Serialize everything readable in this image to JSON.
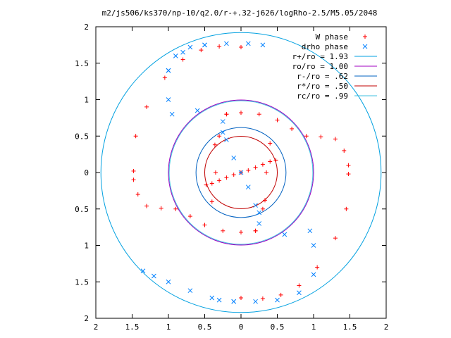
{
  "chart_data": {
    "type": "scatter",
    "title": "m2/js506/ks370/np-10/q2.0/r-+.32-j626/logRho-2.5/M5.05/2048",
    "xlabel": "",
    "ylabel": "",
    "xlim": [
      -2,
      2
    ],
    "ylim": [
      -2,
      2
    ],
    "x_tick_values": [
      -2,
      -1.5,
      -1,
      -0.5,
      0,
      0.5,
      1,
      1.5,
      2
    ],
    "x_tick_labels": [
      "2",
      "1.5",
      "1",
      "0.5",
      "0",
      "0.5",
      "1",
      "1.5",
      "2"
    ],
    "y_tick_values": [
      -2,
      -1.5,
      -1,
      -0.5,
      0,
      0.5,
      1,
      1.5,
      2
    ],
    "y_tick_labels": [
      "2",
      "1.5",
      "1",
      "0.5",
      "0",
      "0.5",
      "1",
      "1.5",
      "2"
    ],
    "grid": false,
    "legend_position": "top-right",
    "series": [
      {
        "name": "W phase",
        "marker": "plus",
        "color": "#ff0000",
        "points": [
          [
            0,
            0
          ],
          [
            -0.1,
            -0.03
          ],
          [
            -0.2,
            -0.07
          ],
          [
            -0.3,
            -0.11
          ],
          [
            -0.4,
            -0.15
          ],
          [
            -0.48,
            -0.17
          ],
          [
            0.1,
            0.03
          ],
          [
            0.2,
            0.07
          ],
          [
            0.3,
            0.11
          ],
          [
            0.4,
            0.15
          ],
          [
            0.48,
            0.17
          ],
          [
            -0.36,
            0.38
          ],
          [
            0.33,
            -0.38
          ],
          [
            -1.48,
            0.02
          ],
          [
            -1.45,
            0.5
          ],
          [
            -1.3,
            0.9
          ],
          [
            -1.05,
            1.3
          ],
          [
            -0.8,
            1.55
          ],
          [
            -0.55,
            1.68
          ],
          [
            -0.3,
            1.73
          ],
          [
            0,
            1.72
          ],
          [
            1.48,
            -0.02
          ],
          [
            1.45,
            -0.5
          ],
          [
            1.3,
            -0.9
          ],
          [
            1.05,
            -1.3
          ],
          [
            0.8,
            -1.55
          ],
          [
            0.55,
            -1.68
          ],
          [
            0.3,
            -1.73
          ],
          [
            0,
            -1.72
          ],
          [
            -0.2,
            0.8
          ],
          [
            0.0,
            0.82
          ],
          [
            0.25,
            0.8
          ],
          [
            0.5,
            0.72
          ],
          [
            0.7,
            0.6
          ],
          [
            0.9,
            0.5
          ],
          [
            1.1,
            0.49
          ],
          [
            1.3,
            0.46
          ],
          [
            1.42,
            0.3
          ],
          [
            1.48,
            0.1
          ],
          [
            0.2,
            -0.8
          ],
          [
            0.0,
            -0.82
          ],
          [
            -0.25,
            -0.8
          ],
          [
            -0.5,
            -0.72
          ],
          [
            -0.7,
            -0.6
          ],
          [
            -0.9,
            -0.5
          ],
          [
            -1.1,
            -0.49
          ],
          [
            -1.3,
            -0.46
          ],
          [
            -1.42,
            -0.3
          ],
          [
            -1.48,
            -0.1
          ],
          [
            -0.2,
            0.8
          ],
          [
            -0.3,
            0.5
          ],
          [
            -0.35,
            0.0
          ],
          [
            -0.4,
            -0.4
          ],
          [
            -0.5,
            -0.72
          ],
          [
            0.2,
            -0.8
          ],
          [
            0.3,
            -0.5
          ],
          [
            0.35,
            0.0
          ],
          [
            0.4,
            0.4
          ],
          [
            0.5,
            0.72
          ]
        ]
      },
      {
        "name": "drho phase",
        "marker": "cross",
        "color": "#0080ff",
        "points": [
          [
            0,
            0
          ],
          [
            -0.1,
            0.2
          ],
          [
            -0.2,
            0.45
          ],
          [
            0.1,
            -0.2
          ],
          [
            0.2,
            -0.45
          ],
          [
            -0.25,
            0.55
          ],
          [
            -0.25,
            0.7
          ],
          [
            -0.6,
            0.85
          ],
          [
            -0.95,
            0.8
          ],
          [
            -1.0,
            1.0
          ],
          [
            -1.0,
            1.4
          ],
          [
            -0.8,
            1.65
          ],
          [
            -0.5,
            1.75
          ],
          [
            -0.2,
            1.77
          ],
          [
            0.1,
            1.77
          ],
          [
            0.3,
            1.75
          ],
          [
            0.25,
            -0.55
          ],
          [
            0.25,
            -0.7
          ],
          [
            0.6,
            -0.85
          ],
          [
            0.95,
            -0.8
          ],
          [
            1.0,
            -1.0
          ],
          [
            1.0,
            -1.4
          ],
          [
            0.8,
            -1.65
          ],
          [
            0.5,
            -1.75
          ],
          [
            0.2,
            -1.77
          ],
          [
            -0.1,
            -1.77
          ],
          [
            -0.3,
            -1.75
          ],
          [
            -0.5,
            1.75
          ],
          [
            -0.7,
            1.72
          ],
          [
            -0.9,
            1.6
          ],
          [
            -1.0,
            1.4
          ],
          [
            -1.35,
            -1.35
          ],
          [
            -1.2,
            -1.42
          ],
          [
            -1.0,
            -1.5
          ],
          [
            -0.7,
            -1.62
          ],
          [
            -0.4,
            -1.72
          ],
          [
            -0.1,
            -1.77
          ]
        ]
      }
    ],
    "circles": [
      {
        "name": "r+/ro = 1.93",
        "radius": 1.93,
        "color": "#00a0e0"
      },
      {
        "name": "ro/ro = 1.00",
        "radius": 1.0,
        "color": "#a000c0"
      },
      {
        "name": "r-/ro = .62",
        "radius": 0.62,
        "color": "#0060c0"
      },
      {
        "name": "r*/ro = .50",
        "radius": 0.5,
        "color": "#c00000"
      },
      {
        "name": "rc/ro = .99",
        "radius": 0.99,
        "color": "#40c0e0"
      }
    ]
  }
}
